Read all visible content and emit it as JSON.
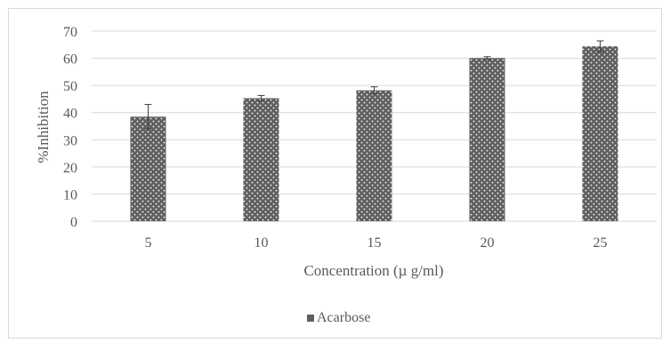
{
  "chart_data": {
    "type": "bar",
    "categories": [
      "5",
      "10",
      "15",
      "20",
      "25"
    ],
    "series": [
      {
        "name": "Acarbose",
        "values": [
          38.5,
          45.3,
          48.2,
          60.1,
          64.4
        ],
        "error": [
          4.5,
          1.0,
          1.3,
          0.5,
          2.0
        ]
      }
    ],
    "xlabel": "Concentration (µ g/ml)",
    "ylabel": "%Inhibition",
    "ylim": [
      0,
      70
    ],
    "yticks": [
      0,
      10,
      20,
      30,
      40,
      50,
      60,
      70
    ],
    "grid": true,
    "legend_position": "bottom",
    "bar_color": "#5f5f5f",
    "pattern_dot_color": "#ffffff",
    "grid_color": "#d9d9d9",
    "text_color": "#595959"
  }
}
